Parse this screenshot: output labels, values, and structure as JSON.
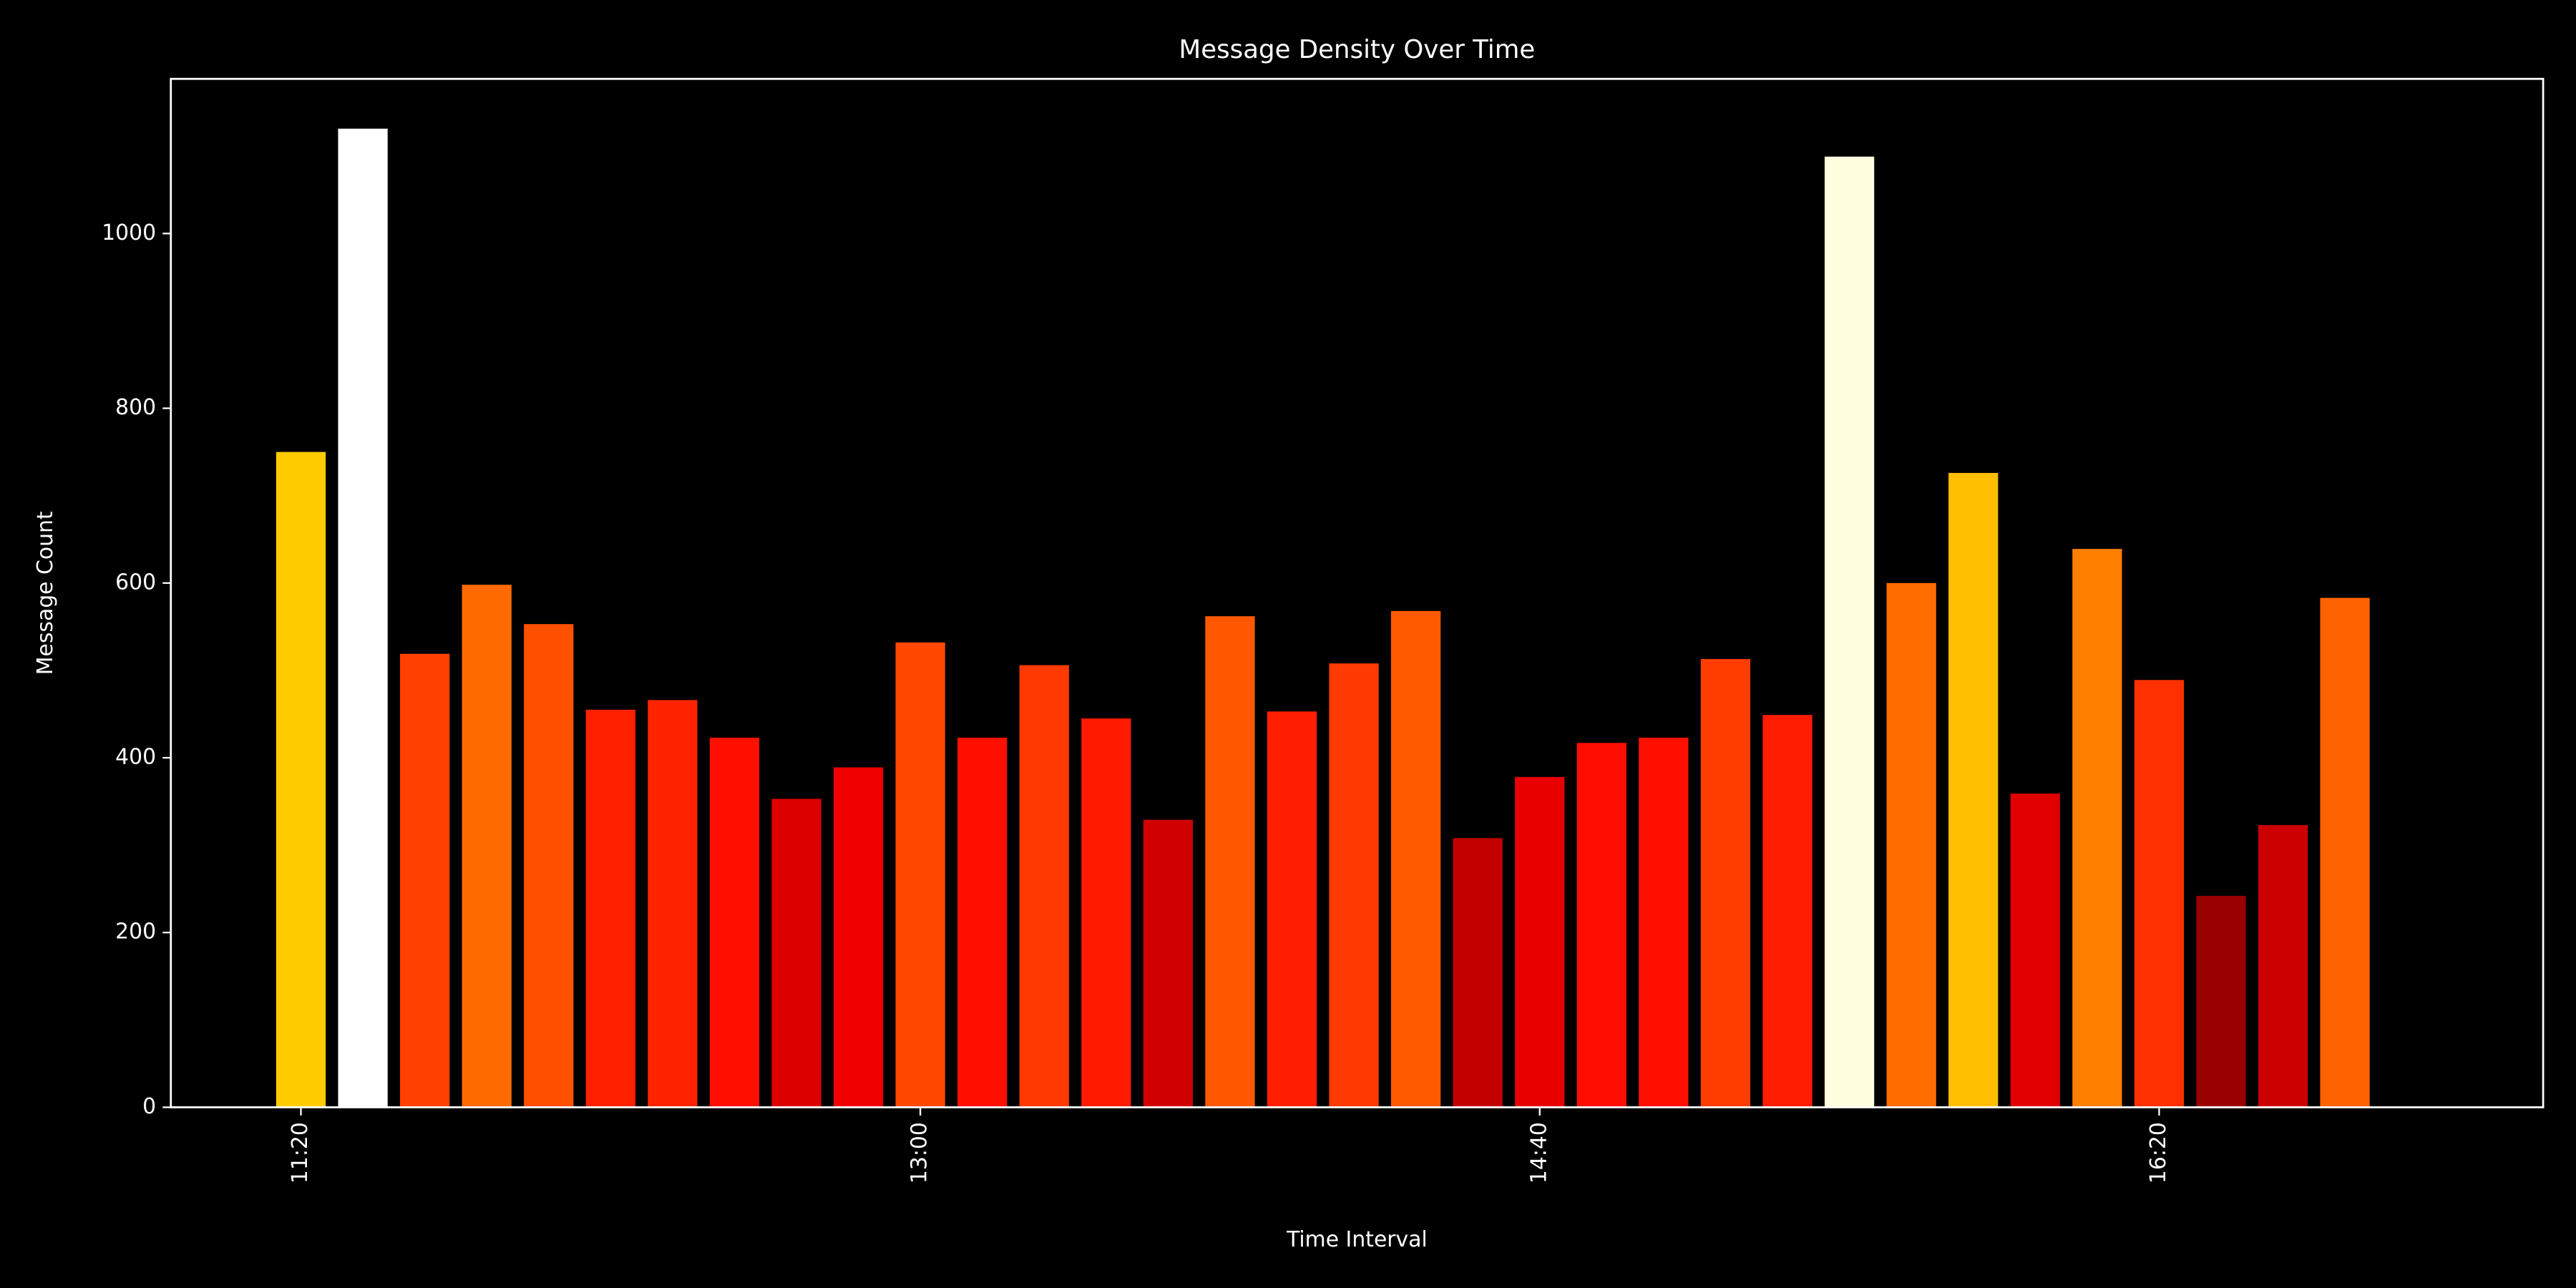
{
  "chart_data": {
    "type": "bar",
    "title": "Message Density Over Time",
    "x_label": "Time Interval",
    "y_label": "Message Count",
    "x": [
      680,
      690,
      700,
      710,
      720,
      730,
      740,
      750,
      760,
      770,
      780,
      790,
      800,
      810,
      820,
      830,
      840,
      850,
      860,
      870,
      880,
      890,
      900,
      910,
      920,
      930,
      940,
      950,
      960,
      970,
      980,
      990,
      1000,
      1010
    ],
    "values": [
      750,
      1120,
      519,
      598,
      553,
      455,
      466,
      423,
      353,
      389,
      532,
      423,
      506,
      445,
      329,
      562,
      453,
      508,
      568,
      308,
      378,
      417,
      423,
      513,
      449,
      1088,
      600,
      726,
      359,
      639,
      489,
      242,
      323,
      583
    ],
    "colors": [
      "#ffcc00",
      "#ffffff",
      "#ff4000",
      "#ff6a00",
      "#ff5000",
      "#ff2000",
      "#ff2400",
      "#ff1000",
      "#dd0000",
      "#f00000",
      "#ff4800",
      "#ff1000",
      "#ff3a00",
      "#ff1a00",
      "#d00000",
      "#ff5800",
      "#ff1e00",
      "#ff3a00",
      "#ff5a00",
      "#c20000",
      "#e80000",
      "#ff0e00",
      "#ff1000",
      "#ff3c00",
      "#ff1c00",
      "#ffffe0",
      "#ff6c00",
      "#ffbe00",
      "#e00000",
      "#ff8000",
      "#ff3000",
      "#990000",
      "#cc0000",
      "#ff6200"
    ],
    "xlim": [
      659,
      1042
    ],
    "xticks": [
      {
        "value": 680,
        "label": "11:20"
      },
      {
        "value": 780,
        "label": "13:00"
      },
      {
        "value": 880,
        "label": "14:40"
      },
      {
        "value": 980,
        "label": "16:20"
      }
    ],
    "ylim": [
      0,
      1177
    ],
    "yticks": [
      0,
      200,
      400,
      600,
      800,
      1000
    ],
    "grid": false
  }
}
